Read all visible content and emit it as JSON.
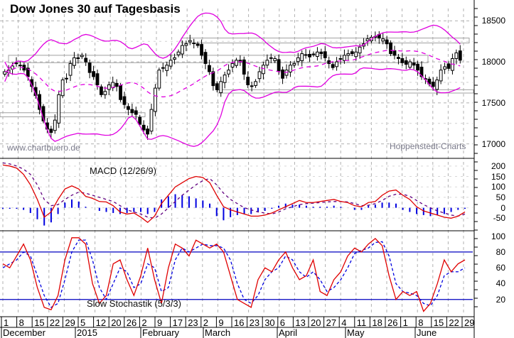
{
  "title": "Dow Jones 30 auf Tagesbasis",
  "watermark_left": "www.chartbuero.de",
  "watermark_right": "Hoppenstedt-Charts",
  "colors": {
    "bollinger": "#e000e0",
    "macd_line": "#e00000",
    "macd_signal": "#600080",
    "macd_histogram": "#0000e0",
    "stoch_k": "#e00000",
    "stoch_d": "#0000e0",
    "stoch_levels": "#0000c0",
    "grid": "#b0b0b0",
    "candle": "#000000"
  },
  "x_axis": {
    "days": [
      "1",
      "8",
      "15",
      "22",
      "29",
      "5",
      "12",
      "20",
      "26",
      "2",
      "9",
      "17",
      "23",
      "2",
      "9",
      "16",
      "23",
      "30",
      "6",
      "13",
      "20",
      "27",
      "4",
      "11",
      "18",
      "26",
      "1",
      "8",
      "15",
      "22",
      "29"
    ],
    "months": [
      "December",
      "2015",
      "February",
      "March",
      "April",
      "May",
      "June"
    ]
  },
  "chart_data": [
    {
      "type": "candlestick",
      "title": "Dow Jones 30 auf Tagesbasis",
      "ylabel": "",
      "ylim": [
        16850,
        18650
      ],
      "yticks": [
        17000,
        17500,
        18000,
        18500
      ],
      "overlays": [
        "Bollinger Bands (upper, middle, lower)"
      ],
      "annotations": [
        "Resistance box ~18000",
        "Support box ~17350",
        "Box ~18270",
        "Box ~17640"
      ],
      "x_range": "2014-12-01 to 2015-06-19",
      "close_approx": [
        17880,
        17900,
        17950,
        17980,
        17960,
        17900,
        17820,
        17700,
        17590,
        17420,
        17280,
        17180,
        17140,
        17290,
        17600,
        17780,
        17800,
        17980,
        18050,
        18040,
        18080,
        18000,
        17870,
        17820,
        17720,
        17600,
        17640,
        17720,
        17750,
        17700,
        17540,
        17480,
        17420,
        17380,
        17360,
        17240,
        17170,
        17120,
        17420,
        17680,
        17900,
        17930,
        17960,
        18020,
        18050,
        18120,
        18200,
        18220,
        18260,
        18230,
        18200,
        18080,
        17980,
        17880,
        17710,
        17660,
        17760,
        17840,
        17900,
        17980,
        18020,
        18000,
        17850,
        17720,
        17700,
        17760,
        17880,
        17960,
        18020,
        18050,
        18040,
        17890,
        17800,
        17900,
        17960,
        17980,
        18050,
        18100,
        18080,
        18060,
        18090,
        18120,
        18100,
        18050,
        17980,
        17930,
        18000,
        18040,
        18080,
        18100,
        18100,
        18120,
        18180,
        18220,
        18280,
        18300,
        18310,
        18290,
        18280,
        18220,
        18100,
        18080,
        18040,
        17990,
        17970,
        18000,
        17960,
        17900,
        17820,
        17790,
        17730,
        17700,
        17780,
        17900,
        17940,
        17920,
        18040,
        18110,
        18020
      ]
    },
    {
      "type": "line",
      "title": "MACD (12/26/9)",
      "ylim": [
        -100,
        230
      ],
      "yticks": [
        -50,
        0,
        50,
        100,
        150,
        200
      ],
      "series": [
        {
          "name": "MACD",
          "values": [
            205,
            200,
            190,
            160,
            110,
            40,
            -45,
            -20,
            40,
            90,
            105,
            90,
            55,
            45,
            30,
            28,
            10,
            -20,
            -30,
            -25,
            -45,
            -70,
            -40,
            20,
            60,
            100,
            120,
            140,
            150,
            145,
            120,
            60,
            5,
            -10,
            -20,
            -30,
            -40,
            -40,
            -35,
            -25,
            -10,
            5,
            20,
            35,
            25,
            25,
            30,
            35,
            40,
            30,
            25,
            10,
            5,
            25,
            30,
            60,
            80,
            85,
            60,
            40,
            5,
            -15,
            -25,
            -35,
            -45,
            -50,
            -40,
            -20
          ]
        },
        {
          "name": "Signal",
          "values": [
            215,
            210,
            200,
            185,
            160,
            110,
            40,
            10,
            15,
            40,
            60,
            75,
            70,
            60,
            50,
            40,
            30,
            10,
            -10,
            -20,
            -30,
            -45,
            -50,
            -30,
            0,
            30,
            60,
            85,
            110,
            130,
            140,
            110,
            70,
            40,
            20,
            0,
            -10,
            -20,
            -25,
            -30,
            -20,
            -5,
            5,
            15,
            20,
            22,
            25,
            28,
            30,
            30,
            28,
            20,
            10,
            12,
            20,
            35,
            55,
            65,
            65,
            55,
            35,
            15,
            0,
            -15,
            -25,
            -35,
            -40,
            -30
          ]
        },
        {
          "name": "Histogram",
          "values": [
            -5,
            -5,
            -5,
            -10,
            -25,
            -55,
            -85,
            -70,
            -30,
            25,
            40,
            30,
            5,
            0,
            -15,
            -20,
            -25,
            -30,
            -25,
            -20,
            -20,
            -30,
            -20,
            40,
            55,
            65,
            60,
            55,
            45,
            35,
            20,
            -40,
            -60,
            -45,
            -35,
            -30,
            -30,
            -20,
            -15,
            -5,
            10,
            20,
            15,
            15,
            10,
            5,
            5,
            5,
            10,
            5,
            0,
            -10,
            -10,
            10,
            15,
            25,
            25,
            20,
            -10,
            -20,
            -30,
            -35,
            -40,
            -35,
            -30,
            -20,
            -10,
            -5
          ]
        }
      ]
    },
    {
      "type": "line",
      "title": "Slow Stochastik (5/3/3)",
      "ylim": [
        0,
        105
      ],
      "yticks": [
        20,
        40,
        60,
        80,
        100
      ],
      "reference_lines": [
        20,
        80
      ],
      "series": [
        {
          "name": "%K",
          "values": [
            65,
            60,
            75,
            90,
            70,
            35,
            10,
            7,
            25,
            70,
            98,
            98,
            90,
            40,
            15,
            25,
            65,
            70,
            45,
            25,
            50,
            85,
            45,
            15,
            60,
            90,
            85,
            75,
            95,
            90,
            85,
            90,
            80,
            50,
            20,
            15,
            10,
            45,
            60,
            55,
            70,
            80,
            60,
            45,
            50,
            70,
            30,
            25,
            45,
            55,
            75,
            85,
            80,
            90,
            97,
            88,
            50,
            20,
            30,
            25,
            30,
            5,
            15,
            40,
            70,
            55,
            65,
            70
          ]
        },
        {
          "name": "%D",
          "values": [
            60,
            65,
            70,
            80,
            75,
            50,
            25,
            10,
            15,
            45,
            80,
            95,
            95,
            70,
            35,
            20,
            40,
            60,
            55,
            35,
            40,
            65,
            60,
            30,
            35,
            70,
            85,
            80,
            85,
            90,
            88,
            88,
            85,
            70,
            40,
            20,
            15,
            25,
            45,
            55,
            60,
            75,
            70,
            55,
            48,
            55,
            45,
            30,
            35,
            45,
            60,
            78,
            82,
            85,
            92,
            93,
            75,
            40,
            30,
            28,
            25,
            15,
            12,
            25,
            50,
            55,
            55,
            60
          ]
        }
      ]
    }
  ]
}
